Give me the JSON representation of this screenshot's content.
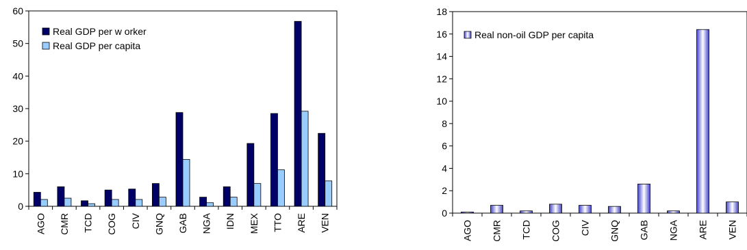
{
  "chart_data": [
    {
      "type": "bar",
      "categories": [
        "AGO",
        "CMR",
        "TCD",
        "COG",
        "CIV",
        "GNQ",
        "GAB",
        "NGA",
        "IDN",
        "MEX",
        "TTO",
        "ARE",
        "VEN"
      ],
      "series": [
        {
          "name": "Real GDP per w orker",
          "values": [
            4.3,
            6.0,
            1.7,
            5.0,
            5.3,
            7.0,
            28.8,
            2.8,
            6.0,
            19.3,
            28.5,
            56.8,
            22.4
          ],
          "color": "#000066"
        },
        {
          "name": "Real GDP per capita",
          "values": [
            2.1,
            2.5,
            0.8,
            2.1,
            2.1,
            2.8,
            14.4,
            1.1,
            2.8,
            7.0,
            11.2,
            29.2,
            7.8
          ],
          "color": "#99ccff"
        }
      ],
      "yticks": [
        "0",
        "10",
        "20",
        "30",
        "40",
        "50",
        "60"
      ],
      "ylim": [
        0,
        60
      ],
      "legend_position": "top-left",
      "grid": false
    },
    {
      "type": "bar",
      "categories": [
        "AGO",
        "CMR",
        "TCD",
        "COG",
        "CIV",
        "GNQ",
        "GAB",
        "NGA",
        "ARE",
        "VEN"
      ],
      "series": [
        {
          "name": "Real non-oil GDP per capita",
          "values": [
            0.1,
            0.7,
            0.2,
            0.8,
            0.7,
            0.6,
            2.6,
            0.2,
            16.4,
            1.0
          ],
          "color": "#bbbbff"
        }
      ],
      "yticks": [
        "0",
        "2",
        "4",
        "6",
        "8",
        "10",
        "12",
        "14",
        "16",
        "18"
      ],
      "ylim": [
        0,
        18
      ],
      "legend_position": "top-left",
      "grid": false
    }
  ]
}
